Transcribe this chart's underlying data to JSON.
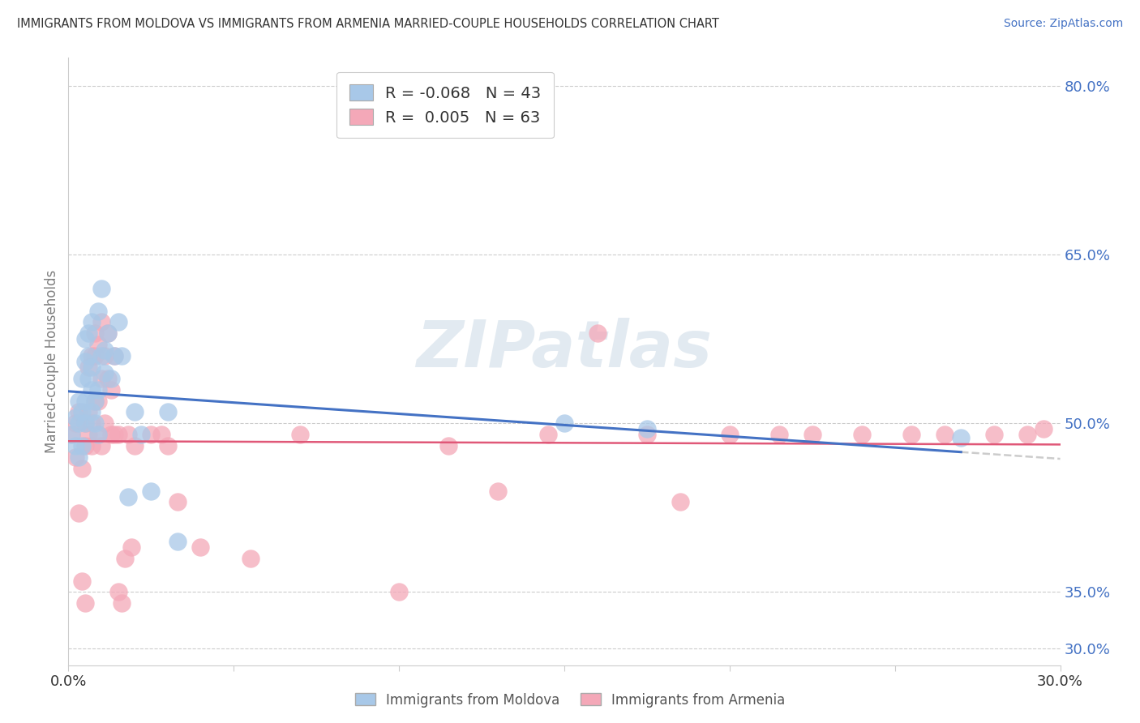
{
  "title": "IMMIGRANTS FROM MOLDOVA VS IMMIGRANTS FROM ARMENIA MARRIED-COUPLE HOUSEHOLDS CORRELATION CHART",
  "source": "Source: ZipAtlas.com",
  "ylabel": "Married-couple Households",
  "xlim": [
    0.0,
    0.3
  ],
  "ylim": [
    0.285,
    0.825
  ],
  "ytick_vals": [
    0.3,
    0.35,
    0.5,
    0.65,
    0.8
  ],
  "ytick_labels": [
    "30.0%",
    "35.0%",
    "50.0%",
    "65.0%",
    "80.0%"
  ],
  "xtick_vals": [
    0.0,
    0.05,
    0.1,
    0.15,
    0.2,
    0.25,
    0.3
  ],
  "xtick_labels": [
    "0.0%",
    "",
    "",
    "",
    "",
    "",
    "30.0%"
  ],
  "moldova_color": "#a8c8e8",
  "armenia_color": "#f4a8b8",
  "moldova_line_color": "#4472C4",
  "armenia_line_color": "#e05878",
  "dashed_line_color": "#cccccc",
  "moldova_R": -0.068,
  "moldova_N": 43,
  "armenia_R": 0.005,
  "armenia_N": 63,
  "watermark": "ZIPatlas",
  "moldova_x": [
    0.001,
    0.002,
    0.002,
    0.003,
    0.003,
    0.003,
    0.004,
    0.004,
    0.004,
    0.005,
    0.005,
    0.005,
    0.005,
    0.006,
    0.006,
    0.006,
    0.007,
    0.007,
    0.007,
    0.007,
    0.008,
    0.008,
    0.009,
    0.009,
    0.009,
    0.01,
    0.01,
    0.011,
    0.011,
    0.012,
    0.013,
    0.014,
    0.015,
    0.016,
    0.018,
    0.02,
    0.022,
    0.025,
    0.03,
    0.033,
    0.15,
    0.175,
    0.27
  ],
  "moldova_y": [
    0.49,
    0.48,
    0.505,
    0.47,
    0.5,
    0.52,
    0.48,
    0.51,
    0.54,
    0.5,
    0.52,
    0.555,
    0.575,
    0.54,
    0.56,
    0.58,
    0.51,
    0.53,
    0.55,
    0.59,
    0.5,
    0.52,
    0.49,
    0.53,
    0.6,
    0.56,
    0.62,
    0.545,
    0.565,
    0.58,
    0.54,
    0.56,
    0.59,
    0.56,
    0.435,
    0.51,
    0.49,
    0.44,
    0.51,
    0.395,
    0.5,
    0.495,
    0.487
  ],
  "armenia_x": [
    0.001,
    0.002,
    0.002,
    0.003,
    0.003,
    0.004,
    0.004,
    0.005,
    0.005,
    0.005,
    0.006,
    0.006,
    0.006,
    0.007,
    0.007,
    0.007,
    0.008,
    0.008,
    0.008,
    0.009,
    0.009,
    0.009,
    0.01,
    0.01,
    0.01,
    0.011,
    0.011,
    0.012,
    0.012,
    0.013,
    0.013,
    0.014,
    0.014,
    0.015,
    0.015,
    0.016,
    0.017,
    0.018,
    0.019,
    0.02,
    0.025,
    0.028,
    0.03,
    0.033,
    0.04,
    0.055,
    0.07,
    0.1,
    0.115,
    0.13,
    0.145,
    0.16,
    0.175,
    0.185,
    0.2,
    0.215,
    0.225,
    0.24,
    0.255,
    0.265,
    0.28,
    0.29,
    0.295
  ],
  "armenia_y": [
    0.49,
    0.47,
    0.5,
    0.42,
    0.51,
    0.36,
    0.46,
    0.34,
    0.48,
    0.5,
    0.49,
    0.51,
    0.55,
    0.48,
    0.5,
    0.56,
    0.52,
    0.56,
    0.58,
    0.49,
    0.52,
    0.57,
    0.48,
    0.54,
    0.59,
    0.5,
    0.56,
    0.54,
    0.58,
    0.49,
    0.53,
    0.49,
    0.56,
    0.35,
    0.49,
    0.34,
    0.38,
    0.49,
    0.39,
    0.48,
    0.49,
    0.49,
    0.48,
    0.43,
    0.39,
    0.38,
    0.49,
    0.35,
    0.48,
    0.44,
    0.49,
    0.58,
    0.49,
    0.43,
    0.49,
    0.49,
    0.49,
    0.49,
    0.49,
    0.49,
    0.49,
    0.49,
    0.495
  ]
}
